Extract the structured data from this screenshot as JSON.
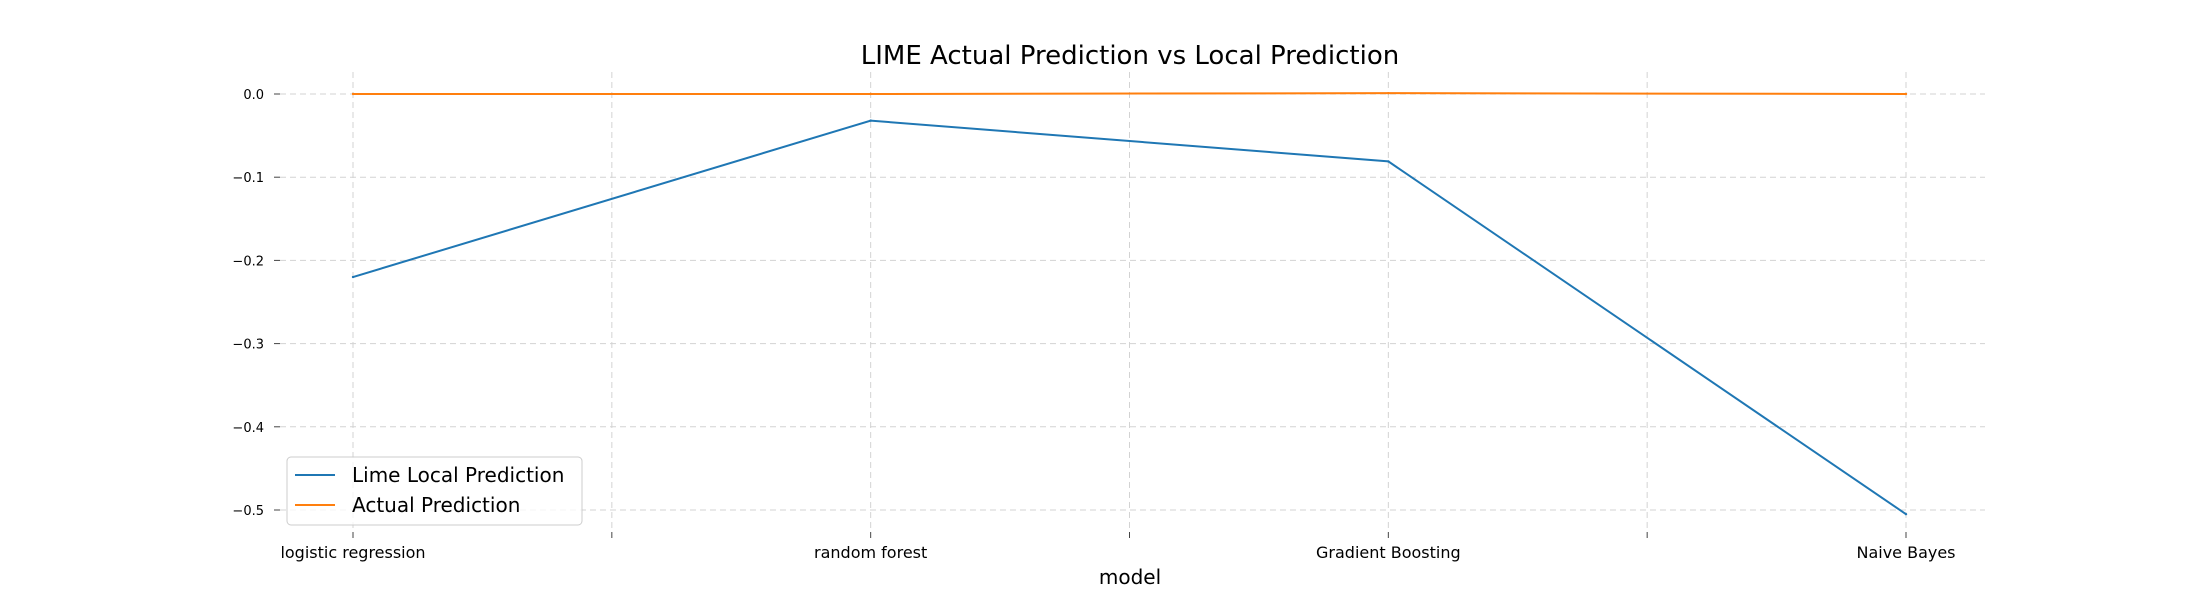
{
  "chart_data": {
    "type": "line",
    "title": "LIME Actual Prediction vs Local Prediction",
    "xlabel": "model",
    "ylabel": "",
    "categories": [
      "logistic regression",
      "random forest",
      "Gradient Boosting",
      "Naive Bayes"
    ],
    "y_ticks": [
      0.0,
      -0.1,
      -0.2,
      -0.3,
      -0.4,
      -0.5
    ],
    "y_tick_labels": [
      "0.0",
      "−0.1",
      "−0.2",
      "−0.3",
      "−0.4",
      "−0.5"
    ],
    "ylim": [
      -0.505,
      0.001
    ],
    "grid": true,
    "legend_position": "lower-left",
    "series": [
      {
        "name": "Lime Local Prediction",
        "color": "#1f77b4",
        "values": [
          -0.22,
          -0.032,
          -0.081,
          -0.505
        ]
      },
      {
        "name": "Actual Prediction",
        "color": "#ff7f0e",
        "values": [
          0.0,
          0.0,
          0.001,
          0.0
        ]
      }
    ]
  }
}
